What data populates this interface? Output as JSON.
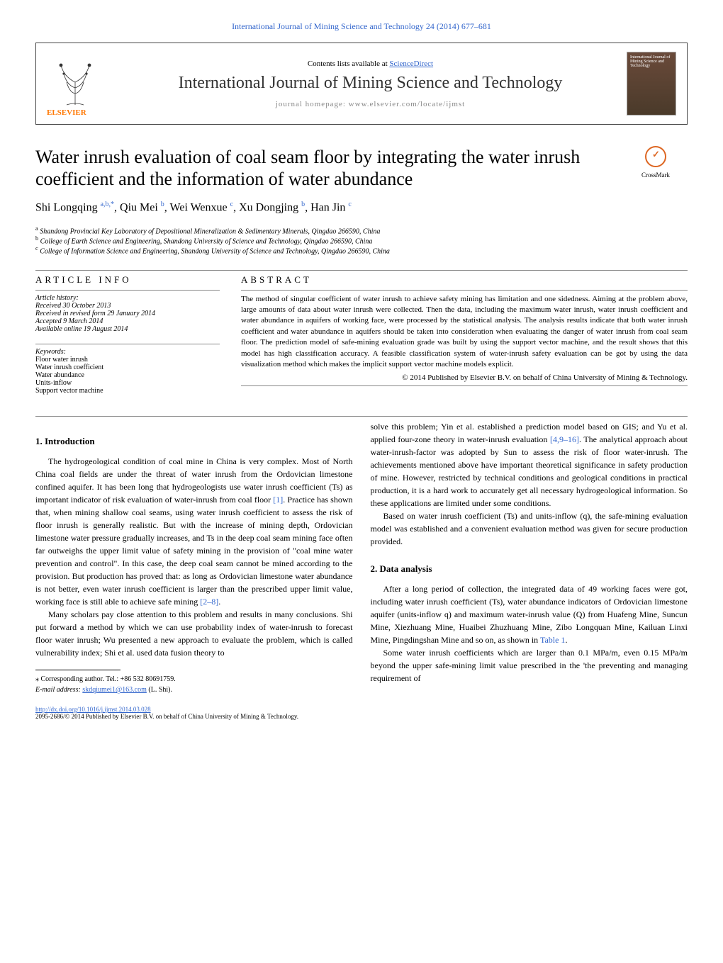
{
  "header": {
    "top_link": "International Journal of Mining Science and Technology 24 (2014) 677–681",
    "contents_line": "Contents lists available at ",
    "contents_link": "ScienceDirect",
    "journal_name": "International Journal of Mining Science and Technology",
    "homepage_label": "journal homepage: www.elsevier.com/locate/ijmst",
    "elsevier": "ELSEVIER",
    "cover_text": "International Journal of\nMining Science\nand Technology"
  },
  "crossmark": "CrossMark",
  "title": "Water inrush evaluation of coal seam floor by integrating the water inrush coefficient and the information of water abundance",
  "authors_html": "Shi Longqing ",
  "author_list": [
    {
      "name": "Shi Longqing",
      "sup": "a,b,*"
    },
    {
      "name": "Qiu Mei",
      "sup": "b"
    },
    {
      "name": "Wei Wenxue",
      "sup": "c"
    },
    {
      "name": "Xu Dongjing",
      "sup": "b"
    },
    {
      "name": "Han Jin",
      "sup": "c"
    }
  ],
  "affiliations": [
    {
      "sup": "a",
      "text": "Shandong Provincial Key Laboratory of Depositional Mineralization & Sedimentary Minerals, Qingdao 266590, China"
    },
    {
      "sup": "b",
      "text": "College of Earth Science and Engineering, Shandong University of Science and Technology, Qingdao 266590, China"
    },
    {
      "sup": "c",
      "text": "College of Information Science and Engineering, Shandong University of Science and Technology, Qingdao 266590, China"
    }
  ],
  "info_head": "ARTICLE INFO",
  "abstract_head": "ABSTRACT",
  "history": {
    "title": "Article history:",
    "received": "Received 30 October 2013",
    "revised": "Received in revised form 29 January 2014",
    "accepted": "Accepted 9 March 2014",
    "online": "Available online 19 August 2014"
  },
  "keywords_title": "Keywords:",
  "keywords": [
    "Floor water inrush",
    "Water inrush coefficient",
    "Water abundance",
    "Units-inflow",
    "Support vector machine"
  ],
  "abstract": "The method of singular coefficient of water inrush to achieve safety mining has limitation and one sidedness. Aiming at the problem above, large amounts of data about water inrush were collected. Then the data, including the maximum water inrush, water inrush coefficient and water abundance in aquifers of working face, were processed by the statistical analysis. The analysis results indicate that both water inrush coefficient and water abundance in aquifers should be taken into consideration when evaluating the danger of water inrush from coal seam floor. The prediction model of safe-mining evaluation grade was built by using the support vector machine, and the result shows that this model has high classification accuracy. A feasible classification system of water-inrush safety evaluation can be got by using the data visualization method which makes the implicit support vector machine models explicit.",
  "copyright": "© 2014 Published by Elsevier B.V. on behalf of China University of Mining & Technology.",
  "sections": {
    "s1_title": "1. Introduction",
    "s1_p1": "The hydrogeological condition of coal mine in China is very complex. Most of North China coal fields are under the threat of water inrush from the Ordovician limestone confined aquifer. It has been long that hydrogeologists use water inrush coefficient (Ts) as important indicator of risk evaluation of water-inrush from coal floor [1]. Practice has shown that, when mining shallow coal seams, using water inrush coefficient to assess the risk of floor inrush is generally realistic. But with the increase of mining depth, Ordovician limestone water pressure gradually increases, and Ts in the deep coal seam mining face often far outweighs the upper limit value of safety mining in the provision of \"coal mine water prevention and control\". In this case, the deep coal seam cannot be mined according to the provision. But production has proved that: as long as Ordovician limestone water abundance is not better, even water inrush coefficient is larger than the prescribed upper limit value, working face is still able to achieve safe mining [2–8].",
    "s1_p2": "Many scholars pay close attention to this problem and results in many conclusions. Shi put forward a method by which we can use probability index of water-inrush to forecast floor water inrush; Wu presented a new approach to evaluate the problem, which is called vulnerability index; Shi et al. used data fusion theory to",
    "s1_p3": "solve this problem; Yin et al. established a prediction model based on GIS; and Yu et al. applied four-zone theory in water-inrush evaluation [4,9–16]. The analytical approach about water-inrush-factor was adopted by Sun to assess the risk of floor water-inrush. The achievements mentioned above have important theoretical significance in safety production of mine. However, restricted by technical conditions and geological conditions in practical production, it is a hard work to accurately get all necessary hydrogeological information. So these applications are limited under some conditions.",
    "s1_p4": "Based on water inrush coefficient (Ts) and units-inflow (q), the safe-mining evaluation model was established and a convenient evaluation method was given for secure production provided.",
    "s2_title": "2. Data analysis",
    "s2_p1": "After a long period of collection, the integrated data of 49 working faces were got, including water inrush coefficient (Ts), water abundance indicators of Ordovician limestone aquifer (units-inflow q) and maximum water-inrush value (Q) from Huafeng Mine, Suncun Mine, Xiezhuang Mine, Huaibei Zhuzhuang Mine, Zibo Longquan Mine, Kailuan Linxi Mine, Pingdingshan Mine and so on, as shown in Table 1.",
    "s2_p2": "Some water inrush coefficients which are larger than 0.1 MPa/m, even 0.15 MPa/m beyond the upper safe-mining limit value prescribed in the 'the preventing and managing requirement of"
  },
  "refs": {
    "r1": "[1]",
    "r28": "[2–8]",
    "r4916": "[4,9–16]",
    "table1": "Table 1"
  },
  "footnotes": {
    "corr": "⁎ Corresponding author. Tel.: +86 532 80691759.",
    "email_label": "E-mail address: ",
    "email": "skdqiumei1@163.com",
    "email_name": " (L. Shi)."
  },
  "footer": {
    "doi": "http://dx.doi.org/10.1016/j.ijmst.2014.03.028",
    "issn": "2095-2686/© 2014 Published by Elsevier B.V. on behalf of China University of Mining & Technology."
  },
  "colors": {
    "link": "#3366cc",
    "elsevier_orange": "#ff7700",
    "crossmark_orange": "#d62"
  }
}
